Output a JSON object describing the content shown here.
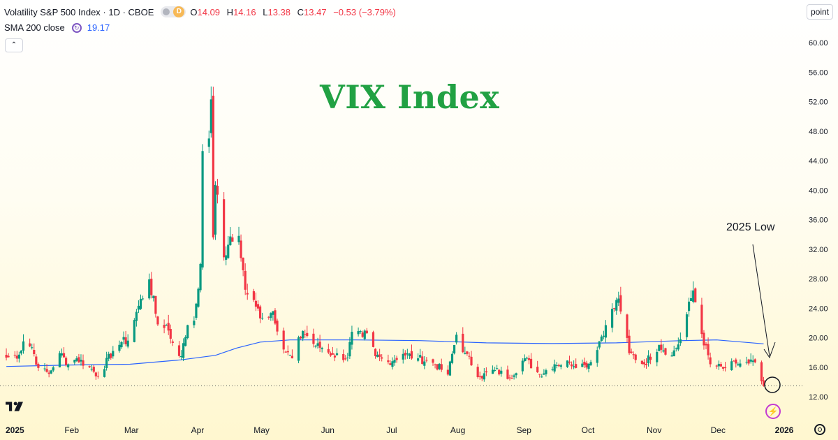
{
  "header": {
    "symbol": "Volatility S&P 500 Index · 1D · CBOE",
    "toggle_letter": "D",
    "o_label": "O",
    "o_value": "14.09",
    "h_label": "H",
    "h_value": "14.16",
    "l_label": "L",
    "l_value": "13.38",
    "c_label": "C",
    "c_value": "13.47",
    "change": "−0.53 (−3.79%)"
  },
  "indicator": {
    "label": "SMA 200 close",
    "value": "19.17"
  },
  "collapse_icon": "⌃",
  "point_button": "point",
  "watermark": "VIX Index",
  "annotation": "2025 Low",
  "colors": {
    "up": "#089981",
    "down": "#f23645",
    "sma": "#2962ff",
    "watermark": "#21a143",
    "annotation_circle": "#131722"
  },
  "icons": {
    "logo": "tradingview-logo-icon",
    "bolt": "lightning-icon",
    "settings": "gear-icon"
  },
  "chart_data": {
    "type": "candlestick",
    "y_axis": {
      "ticks": [
        "60.00",
        "56.00",
        "52.00",
        "48.00",
        "44.00",
        "40.00",
        "36.00",
        "32.00",
        "28.00",
        "24.00",
        "20.00",
        "16.00",
        "12.00"
      ],
      "min": 10.5,
      "max": 61.2
    },
    "x_axis": {
      "ticks": [
        "2025",
        "Feb",
        "Mar",
        "Apr",
        "May",
        "Jun",
        "Jul",
        "Aug",
        "Sep",
        "Oct",
        "Nov",
        "Dec",
        "2026"
      ]
    },
    "last_close": 13.47,
    "series": [
      {
        "name": "SMA 200 close",
        "type": "line",
        "points": [
          [
            "2025-01-02",
            16.1
          ],
          [
            "2025-02-01",
            16.3
          ],
          [
            "2025-03-01",
            16.4
          ],
          [
            "2025-03-25",
            17.0
          ],
          [
            "2025-04-10",
            17.6
          ],
          [
            "2025-04-20",
            18.6
          ],
          [
            "2025-05-01",
            19.4
          ],
          [
            "2025-05-15",
            19.7
          ],
          [
            "2025-06-15",
            19.7
          ],
          [
            "2025-07-15",
            19.6
          ],
          [
            "2025-08-15",
            19.3
          ],
          [
            "2025-09-15",
            19.2
          ],
          [
            "2025-10-15",
            19.3
          ],
          [
            "2025-11-15",
            19.6
          ],
          [
            "2025-12-01",
            19.7
          ],
          [
            "2025-12-23",
            19.17
          ]
        ]
      },
      {
        "name": "VIX",
        "type": "candles",
        "points": [
          [
            "2025-01-02",
            17.3
          ],
          [
            "2025-01-08",
            17.7
          ],
          [
            "2025-01-10",
            19.5
          ],
          [
            "2025-01-14",
            18.7
          ],
          [
            "2025-01-17",
            15.9
          ],
          [
            "2025-01-22",
            15.1
          ],
          [
            "2025-01-27",
            17.9
          ],
          [
            "2025-01-31",
            16.4
          ],
          [
            "2025-02-04",
            17.2
          ],
          [
            "2025-02-10",
            16.0
          ],
          [
            "2025-02-14",
            14.8
          ],
          [
            "2025-02-21",
            18.2
          ],
          [
            "2025-02-25",
            19.4
          ],
          [
            "2025-02-28",
            19.6
          ],
          [
            "2025-03-04",
            23.5
          ],
          [
            "2025-03-10",
            27.9
          ],
          [
            "2025-03-14",
            21.8
          ],
          [
            "2025-03-18",
            21.7
          ],
          [
            "2025-03-21",
            19.3
          ],
          [
            "2025-03-25",
            17.5
          ],
          [
            "2025-03-28",
            21.7
          ],
          [
            "2025-03-31",
            22.3
          ],
          [
            "2025-04-03",
            30.0
          ],
          [
            "2025-04-04",
            45.3
          ],
          [
            "2025-04-07",
            47.0
          ],
          [
            "2025-04-08",
            52.3
          ],
          [
            "2025-04-09",
            33.6
          ],
          [
            "2025-04-10",
            40.7
          ],
          [
            "2025-04-14",
            30.9
          ],
          [
            "2025-04-16",
            32.6
          ],
          [
            "2025-04-21",
            33.8
          ],
          [
            "2025-04-24",
            26.5
          ],
          [
            "2025-04-29",
            24.2
          ],
          [
            "2025-05-02",
            22.7
          ],
          [
            "2025-05-07",
            23.6
          ],
          [
            "2025-05-12",
            18.4
          ],
          [
            "2025-05-16",
            17.2
          ],
          [
            "2025-05-21",
            20.9
          ],
          [
            "2025-05-27",
            18.9
          ],
          [
            "2025-05-30",
            18.6
          ],
          [
            "2025-06-04",
            17.7
          ],
          [
            "2025-06-11",
            17.3
          ],
          [
            "2025-06-13",
            20.8
          ],
          [
            "2025-06-18",
            20.1
          ],
          [
            "2025-06-20",
            20.6
          ],
          [
            "2025-06-24",
            17.5
          ],
          [
            "2025-06-30",
            16.7
          ],
          [
            "2025-07-07",
            17.8
          ],
          [
            "2025-07-14",
            17.2
          ],
          [
            "2025-07-21",
            16.6
          ],
          [
            "2025-07-28",
            15.0
          ],
          [
            "2025-08-01",
            20.4
          ],
          [
            "2025-08-05",
            17.9
          ],
          [
            "2025-08-12",
            14.7
          ],
          [
            "2025-08-19",
            15.6
          ],
          [
            "2025-08-26",
            14.6
          ],
          [
            "2025-09-02",
            17.2
          ],
          [
            "2025-09-09",
            15.0
          ],
          [
            "2025-09-16",
            16.4
          ],
          [
            "2025-09-23",
            16.6
          ],
          [
            "2025-09-30",
            16.3
          ],
          [
            "2025-10-03",
            16.7
          ],
          [
            "2025-10-10",
            21.7
          ],
          [
            "2025-10-16",
            25.3
          ],
          [
            "2025-10-21",
            17.9
          ],
          [
            "2025-10-28",
            16.4
          ],
          [
            "2025-11-04",
            19.0
          ],
          [
            "2025-11-10",
            17.6
          ],
          [
            "2025-11-14",
            19.8
          ],
          [
            "2025-11-20",
            26.4
          ],
          [
            "2025-11-24",
            20.5
          ],
          [
            "2025-11-28",
            16.4
          ],
          [
            "2025-12-04",
            15.8
          ],
          [
            "2025-12-10",
            16.5
          ],
          [
            "2025-12-16",
            16.5
          ],
          [
            "2025-12-18",
            16.9
          ],
          [
            "2025-12-22",
            14.1
          ],
          [
            "2025-12-23",
            13.47
          ]
        ]
      }
    ]
  }
}
